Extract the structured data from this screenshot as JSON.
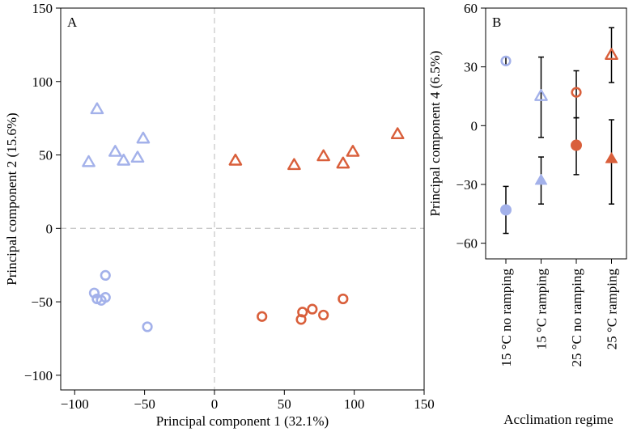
{
  "chart_data": [
    {
      "panel": "A",
      "type": "scatter",
      "xlabel": "Principal component 1 (32.1%)",
      "ylabel": "Principal component 2 (15.6%)",
      "xlim": [
        -110,
        150
      ],
      "ylim": [
        -110,
        150
      ],
      "xticks": [
        -100,
        -50,
        0,
        50,
        100,
        150
      ],
      "yticks": [
        -100,
        -50,
        0,
        50,
        100,
        150
      ],
      "reference_lines": {
        "x": 0,
        "y": 0,
        "style": "dashed"
      },
      "series": [
        {
          "name": "15 °C no ramping",
          "marker": "circle",
          "color": "#a3b1ea",
          "points": [
            [
              -78,
              -32
            ],
            [
              -86,
              -44
            ],
            [
              -84,
              -48
            ],
            [
              -81,
              -49
            ],
            [
              -78,
              -47
            ],
            [
              -48,
              -67
            ]
          ]
        },
        {
          "name": "15 °C ramping",
          "marker": "triangle",
          "color": "#a3b1ea",
          "points": [
            [
              -84,
              81
            ],
            [
              -90,
              45
            ],
            [
              -71,
              52
            ],
            [
              -65,
              46
            ],
            [
              -55,
              48
            ],
            [
              -51,
              61
            ]
          ]
        },
        {
          "name": "25 °C no ramping",
          "marker": "circle",
          "color": "#d95f3b",
          "points": [
            [
              34,
              -60
            ],
            [
              62,
              -62
            ],
            [
              63,
              -57
            ],
            [
              70,
              -55
            ],
            [
              78,
              -59
            ],
            [
              92,
              -48
            ]
          ]
        },
        {
          "name": "25 °C ramping",
          "marker": "triangle",
          "color": "#d95f3b",
          "points": [
            [
              15,
              46
            ],
            [
              57,
              43
            ],
            [
              78,
              49
            ],
            [
              92,
              44
            ],
            [
              99,
              52
            ],
            [
              131,
              64
            ]
          ]
        }
      ]
    },
    {
      "panel": "B",
      "type": "scatter",
      "xlabel": "Acclimation regime",
      "ylabel": "Principal component 4 (6.5%)",
      "ylim": [
        -68,
        60
      ],
      "yticks": [
        -60,
        -30,
        0,
        30,
        60
      ],
      "categories": [
        "15 °C no ramping",
        "15 °C ramping",
        "25 °C no ramping",
        "25 °C ramping"
      ],
      "series": [
        {
          "name": "15 °C no ramping",
          "color": "#a3b1ea",
          "points": [
            {
              "marker": "circle-open",
              "y": 33,
              "ymin": 31,
              "ymax": 35
            },
            {
              "marker": "circle-filled",
              "y": -43,
              "ymin": -55,
              "ymax": -31
            }
          ]
        },
        {
          "name": "15 °C ramping",
          "color": "#a3b1ea",
          "points": [
            {
              "marker": "triangle-open",
              "y": 15,
              "ymin": -6,
              "ymax": 35
            },
            {
              "marker": "triangle-filled",
              "y": -28,
              "ymin": -40,
              "ymax": -16
            }
          ]
        },
        {
          "name": "25 °C no ramping",
          "color": "#d95f3b",
          "points": [
            {
              "marker": "circle-open",
              "y": 17,
              "ymin": 4,
              "ymax": 28
            },
            {
              "marker": "circle-filled",
              "y": -10,
              "ymin": -25,
              "ymax": 4
            }
          ]
        },
        {
          "name": "25 °C ramping",
          "color": "#d95f3b",
          "points": [
            {
              "marker": "triangle-open",
              "y": 36,
              "ymin": 22,
              "ymax": 50
            },
            {
              "marker": "triangle-filled",
              "y": -17,
              "ymin": -40,
              "ymax": 3
            }
          ]
        }
      ]
    }
  ],
  "axes_labels": {
    "panel_a": {
      "letter": "A",
      "x": "Principal component 1 (32.1%)",
      "y": "Principal component 2 (15.6%)"
    },
    "panel_b": {
      "letter": "B",
      "x": "Acclimation regime",
      "y": "Principal component 4 (6.5%)"
    }
  }
}
